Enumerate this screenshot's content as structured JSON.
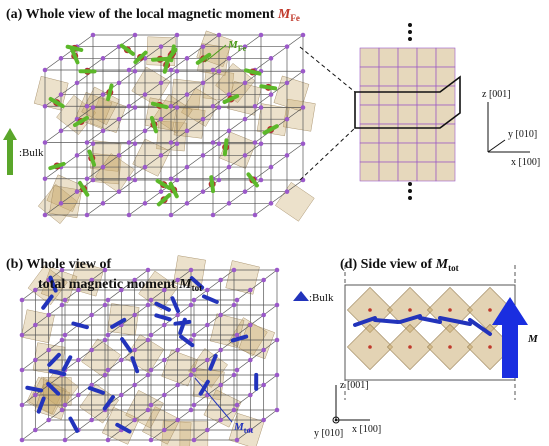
{
  "panel_a": {
    "title": "(a) Whole view of the local magnetic moment",
    "symbol": "M",
    "subscript": "Fe",
    "arrow_label": "M",
    "arrow_sub": "Fe",
    "bulk": ":Bulk",
    "axes": {
      "z": "z [001]",
      "y": "y [010]",
      "x": "x [100]"
    }
  },
  "panel_b": {
    "title_line1": "(b) Whole view of",
    "title_line2": "total magnetic moment",
    "symbol": "M",
    "subscript": "tot",
    "bulk": ":Bulk",
    "arrow_label": "M",
    "arrow_sub": "tot"
  },
  "panel_d": {
    "title": "(d) Side view of",
    "symbol": "M",
    "subscript": "tot",
    "axes": {
      "z": "z [001]",
      "y": "y [010]",
      "x": "x [100]"
    },
    "big_arrow": "M"
  }
}
